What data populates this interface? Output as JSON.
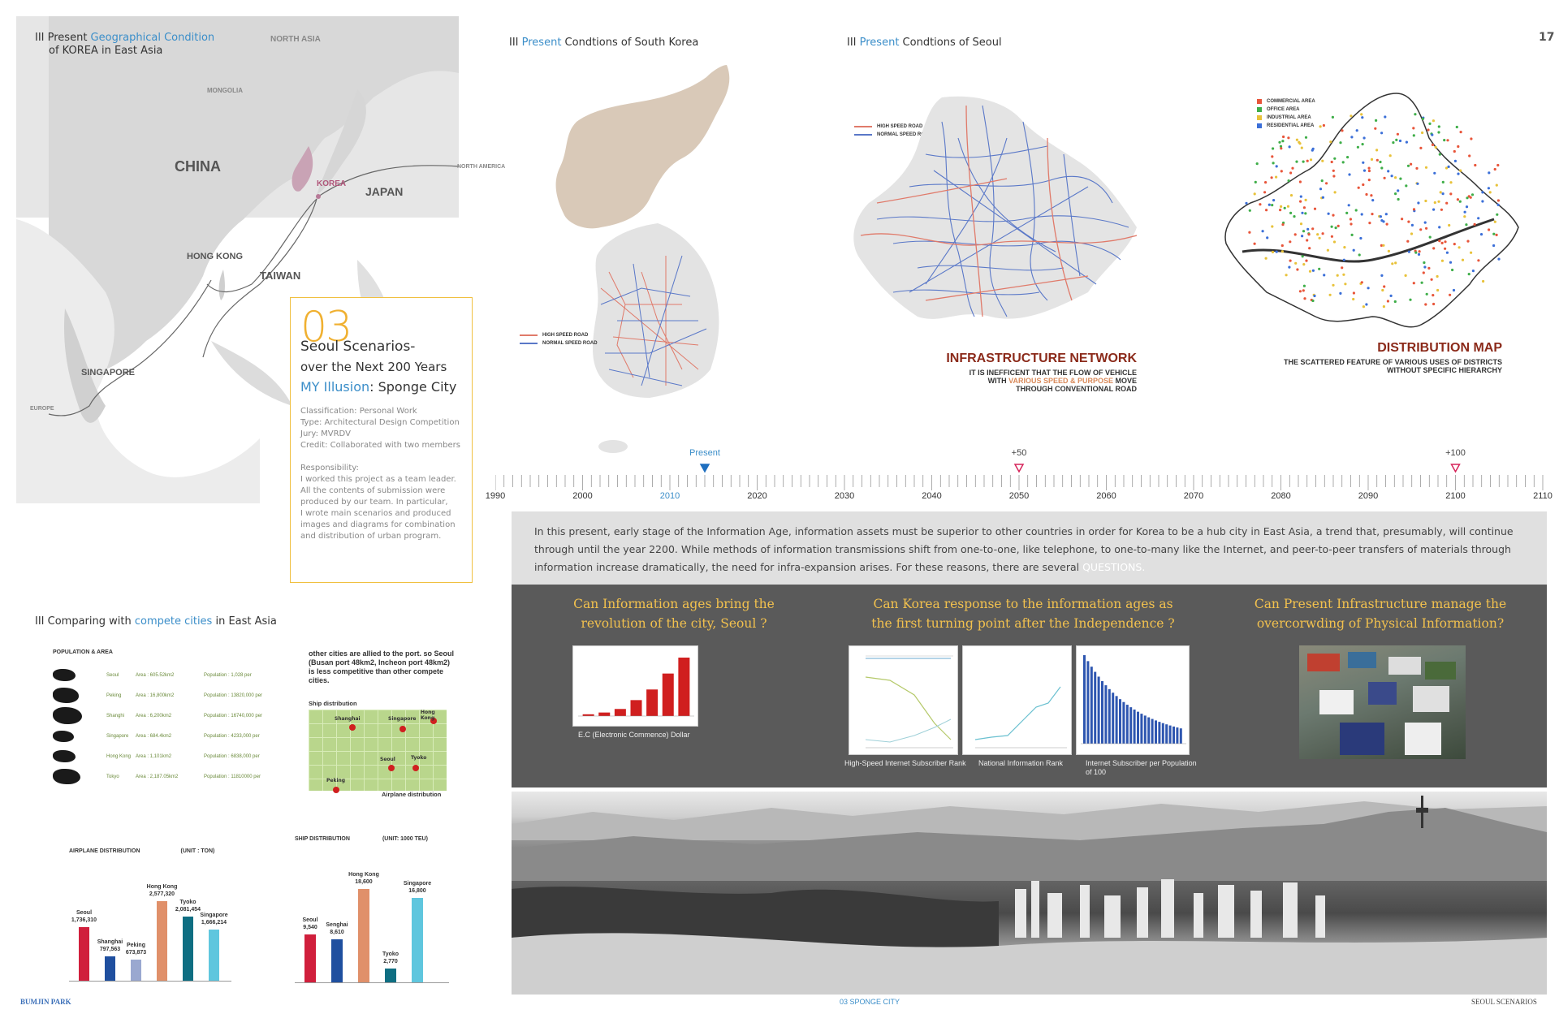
{
  "page_number": "17",
  "section_geo": {
    "prefix": "III  Present ",
    "highlight": "Geographical Condition",
    "line2": "of KOREA in East Asia"
  },
  "section_korea": {
    "prefix": "III  ",
    "highlight": "Present",
    "suffix": " Condtions of South Korea"
  },
  "section_seoul": {
    "prefix": "III  ",
    "highlight": "Present",
    "suffix": " Condtions of Seoul"
  },
  "section_compare": {
    "prefix": "III  Comparing with ",
    "highlight": "compete cities",
    "suffix": " in East Asia"
  },
  "map_labels": {
    "north_asia": "NORTH ASIA",
    "mongolia": "MONGOLIA",
    "china": "CHINA",
    "korea": "KOREA",
    "japan": "JAPAN",
    "north_america": "NORTH AMERICA",
    "hong_kong": "HONG KONG",
    "taiwan": "TAIWAN",
    "singapore": "SINGAPORE",
    "europe": "EUROPE"
  },
  "project_card": {
    "number": "03",
    "title": "Seoul Scenarios-",
    "subtitle": "over the Next 200 Years",
    "illusion_highlight": "MY Illusion",
    "illusion_rest": ": Sponge City",
    "classification": "Classification: Personal Work",
    "type": "Type: Architectural Design Competition",
    "jury": "Jury: MVRDV",
    "credit": "Credit: Collaborated with two members",
    "responsibility_label": "Responsibility:",
    "responsibility_lines": [
      "I worked this project as a team leader.",
      "All the contents of submission were",
      "produced by our team. In particular,",
      "I wrote main scenarios and produced",
      "images and diagrams for combination",
      "and distribution of urban program."
    ]
  },
  "korea_legend": {
    "high": "HIGH SPEED ROAD",
    "normal": "NORMAL SPEED ROAD"
  },
  "seoul_legend": {
    "high": "HIGH SPEED ROAD",
    "normal": "NORMAL SPEED ROAD"
  },
  "infra": {
    "title": "INFRASTRUCTURE NETWORK",
    "l1": "IT IS INEFFICENT THAT THE FLOW OF VEHICLE",
    "l2a": "WITH ",
    "l2b": "VARIOUS SPEED & PURPOSE",
    "l2c": " MOVE",
    "l3": "THROUGH CONVENTIONAL ROAD"
  },
  "distribution": {
    "title": "DISTRIBUTION MAP",
    "l1": "THE SCATTERED FEATURE OF VARIOUS USES OF DISTRICTS",
    "l2": "WITHOUT SPECIFIC HIERARCHY",
    "legend": [
      {
        "label": "COMMERCIAL AREA",
        "color": "#e8553a"
      },
      {
        "label": "OFFICE AREA",
        "color": "#3fae49"
      },
      {
        "label": "INDUSTRIAL AREA",
        "color": "#e8c23a"
      },
      {
        "label": "RESIDENTIAL AREA",
        "color": "#3b6fd8"
      }
    ]
  },
  "timeline": {
    "years": [
      "1990",
      "2000",
      "2010",
      "2020",
      "2030",
      "2040",
      "2050",
      "2060",
      "2070",
      "2080",
      "2090",
      "2100",
      "2110"
    ],
    "highlight_year": "2010",
    "markers": [
      {
        "label": "Present",
        "year": 2014,
        "color": "#1f6fbf"
      },
      {
        "label": "+50",
        "year": 2050,
        "color": "#d6245a"
      },
      {
        "label": "+100",
        "year": 2100,
        "color": "#d6245a"
      }
    ]
  },
  "intro": {
    "text": "In this present, early stage of the Information Age, information assets must be superior to other countries in order for Korea to be a hub city in East Asia, a trend that, presumably, will continue through until the year 2200. While methods of information transmissions shift from one-to-one, like telephone, to one-to-many like the Internet, and peer-to-peer transfers of materials through information increase dramatically, the need for infra-expansion arises. For these reasons, there are several ",
    "highlight": "QUESTIONS."
  },
  "questions": [
    {
      "l1": "Can Information ages bring the",
      "l2": "revolution of the city, Seoul ?"
    },
    {
      "l1": "Can Korea response to the information ages as",
      "l2": "the first turning point after the Independence ?"
    },
    {
      "l1": "Can  Present  Infrastructure  manage  the",
      "l2": "overcorwding of Physical Information?"
    }
  ],
  "captions": {
    "ec": "E.C (Electronic Commence) Dollar",
    "hs": "High-Speed Internet Subscriber Rank",
    "ni": "National Information Rank",
    "is_l1": "Internet Subscriber per Population",
    "is_l2": "of 100"
  },
  "population_area": {
    "title": "POPULATION & AREA",
    "rows": [
      {
        "city": "Seoul",
        "area": "Area : 605.52km2",
        "pop": "Population : 1,028 per"
      },
      {
        "city": "Peking",
        "area": "Area : 16,800km2",
        "pop": "Population : 13820,000 per"
      },
      {
        "city": "Shanghi",
        "area": "Area : 6,200km2",
        "pop": "Population : 16740,000 per"
      },
      {
        "city": "Singapore",
        "area": "Area : 684.4km2",
        "pop": "Population : 4233,000 per"
      },
      {
        "city": "Hong Kong",
        "area": "Area : 1,101km2",
        "pop": "Population : 6838,000 per"
      },
      {
        "city": "Tokyo",
        "area": "Area : 2,187.05km2",
        "pop": "Population : 11810000 per"
      }
    ]
  },
  "port_text": "other cities are allied to the port.  so Seoul (Busan port 48km2, Incheon port 48km2) is less competitive  than other compete cities.",
  "ship_map": {
    "title": "Ship distribution",
    "bottom": "Airplane distribution",
    "cities": [
      "Shanghai",
      "Singapore",
      "Hong Kong",
      "Seoul",
      "Tyoko",
      "Peking"
    ]
  },
  "airplane_chart": {
    "title": "AIRPLANE DISTRIBUTION",
    "unit": "(UNIT : TON)",
    "bars": [
      {
        "name": "Seoul",
        "value": 1736310,
        "label": "1,736,310",
        "color": "#d01f3c"
      },
      {
        "name": "Shanghai",
        "value": 797563,
        "label": "797,563",
        "color": "#1f4f9f"
      },
      {
        "name": "Peking",
        "value": 673873,
        "label": "673,873",
        "color": "#9aa8d0"
      },
      {
        "name": "Hong Kong",
        "value": 2577320,
        "label": "2,577,320",
        "color": "#e0906a"
      },
      {
        "name": "Tyoko",
        "value": 2081454,
        "label": "2,081,454",
        "color": "#0e6e82"
      },
      {
        "name": "Singapore",
        "value": 1666214,
        "label": "1,666,214",
        "color": "#5fc6de"
      }
    ]
  },
  "ship_chart": {
    "title": "SHIP DISTRIBUTION",
    "unit": "(UNIT: 1000 TEU)",
    "bars": [
      {
        "name": "Seoul",
        "value": 9540,
        "label": "9,540",
        "color": "#d01f3c"
      },
      {
        "name": "Senghai",
        "value": 8610,
        "label": "8,610",
        "color": "#1f4f9f"
      },
      {
        "name": "Hong Kong",
        "value": 18600,
        "label": "18,600",
        "color": "#e0906a"
      },
      {
        "name": "Tyoko",
        "value": 2770,
        "label": "2,770",
        "color": "#0e6e82"
      },
      {
        "name": "Singapore",
        "value": 16800,
        "label": "16,800",
        "color": "#5fc6de"
      }
    ]
  },
  "ec_chart": {
    "values": [
      1,
      2,
      4,
      9,
      15,
      24,
      33
    ],
    "color": "#d01f1f"
  },
  "footer": {
    "left": "BUMJIN PARK",
    "center": "03 SPONGE CITY",
    "right": "SEOUL SCENARIOS"
  }
}
